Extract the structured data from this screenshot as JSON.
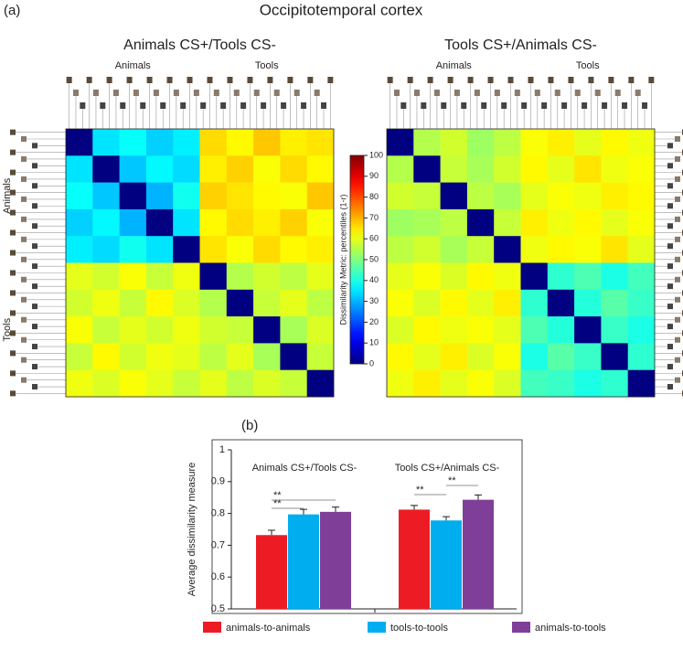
{
  "title": "Occipitotemporal cortex",
  "panel_labels": [
    "(a)",
    "(b)"
  ],
  "colorbar": {
    "label": "Dissimilarity Metric: percentiles (1-r)",
    "lim": [
      0,
      100
    ],
    "ticks": [
      0,
      10,
      20,
      30,
      40,
      50,
      60,
      70,
      80,
      90,
      100
    ]
  },
  "chart_data": [
    {
      "type": "heatmap",
      "title": "Animals CS+/Tools CS-",
      "col_groups": [
        "Animals",
        "Tools"
      ],
      "row_groups": [
        "Animals",
        "Tools"
      ],
      "matrix": [
        [
          0,
          35,
          38,
          33,
          36,
          66,
          63,
          68,
          64,
          65
        ],
        [
          35,
          0,
          32,
          37,
          34,
          64,
          67,
          62,
          66,
          63
        ],
        [
          38,
          32,
          0,
          30,
          39,
          67,
          65,
          63,
          62,
          68
        ],
        [
          33,
          37,
          30,
          0,
          35,
          63,
          66,
          64,
          67,
          62
        ],
        [
          36,
          34,
          39,
          35,
          0,
          65,
          62,
          66,
          63,
          64
        ],
        [
          60,
          58,
          62,
          57,
          61,
          0,
          55,
          58,
          56,
          60
        ],
        [
          58,
          61,
          57,
          63,
          59,
          55,
          0,
          57,
          60,
          56
        ],
        [
          62,
          57,
          60,
          58,
          61,
          58,
          57,
          0,
          54,
          59
        ],
        [
          57,
          63,
          58,
          61,
          60,
          56,
          60,
          54,
          0,
          57
        ],
        [
          61,
          59,
          62,
          60,
          57,
          60,
          56,
          59,
          57,
          0
        ]
      ]
    },
    {
      "type": "heatmap",
      "title": "Tools CS+/Animals CS-",
      "col_groups": [
        "Animals",
        "Tools"
      ],
      "matrix": [
        [
          0,
          55,
          58,
          53,
          56,
          62,
          64,
          60,
          63,
          61
        ],
        [
          55,
          0,
          57,
          54,
          58,
          63,
          60,
          65,
          61,
          62
        ],
        [
          58,
          57,
          0,
          56,
          54,
          60,
          62,
          61,
          64,
          63
        ],
        [
          53,
          54,
          56,
          0,
          57,
          64,
          61,
          63,
          60,
          62
        ],
        [
          56,
          58,
          54,
          57,
          0,
          61,
          63,
          62,
          65,
          60
        ],
        [
          60,
          62,
          59,
          63,
          61,
          0,
          42,
          45,
          40,
          44
        ],
        [
          62,
          59,
          63,
          60,
          64,
          42,
          0,
          41,
          46,
          43
        ],
        [
          59,
          63,
          61,
          62,
          60,
          45,
          41,
          0,
          43,
          40
        ],
        [
          63,
          60,
          64,
          59,
          62,
          40,
          46,
          43,
          0,
          42
        ],
        [
          61,
          64,
          60,
          62,
          59,
          44,
          43,
          40,
          42,
          0
        ]
      ]
    },
    {
      "type": "bar",
      "y_label": "Average dissimilarity measure",
      "categories": [
        "Animals CS+/Tools CS-",
        "Tools CS+/Animals CS-"
      ],
      "series": [
        {
          "name": "animals-to-animals",
          "color": "#ed1c24",
          "values": [
            0.732,
            0.812
          ],
          "errors": [
            0.015,
            0.013
          ]
        },
        {
          "name": "tools-to-tools",
          "color": "#00aeef",
          "values": [
            0.797,
            0.778
          ],
          "errors": [
            0.016,
            0.012
          ]
        },
        {
          "name": "animals-to-tools",
          "color": "#7f3f98",
          "values": [
            0.805,
            0.843
          ],
          "errors": [
            0.015,
            0.015
          ]
        }
      ],
      "ylim": [
        0.5,
        1
      ],
      "yticks": [
        0.5,
        0.6,
        0.7,
        0.8,
        0.9,
        1
      ],
      "annotations": [
        "**",
        "**",
        "**",
        "**"
      ]
    }
  ]
}
